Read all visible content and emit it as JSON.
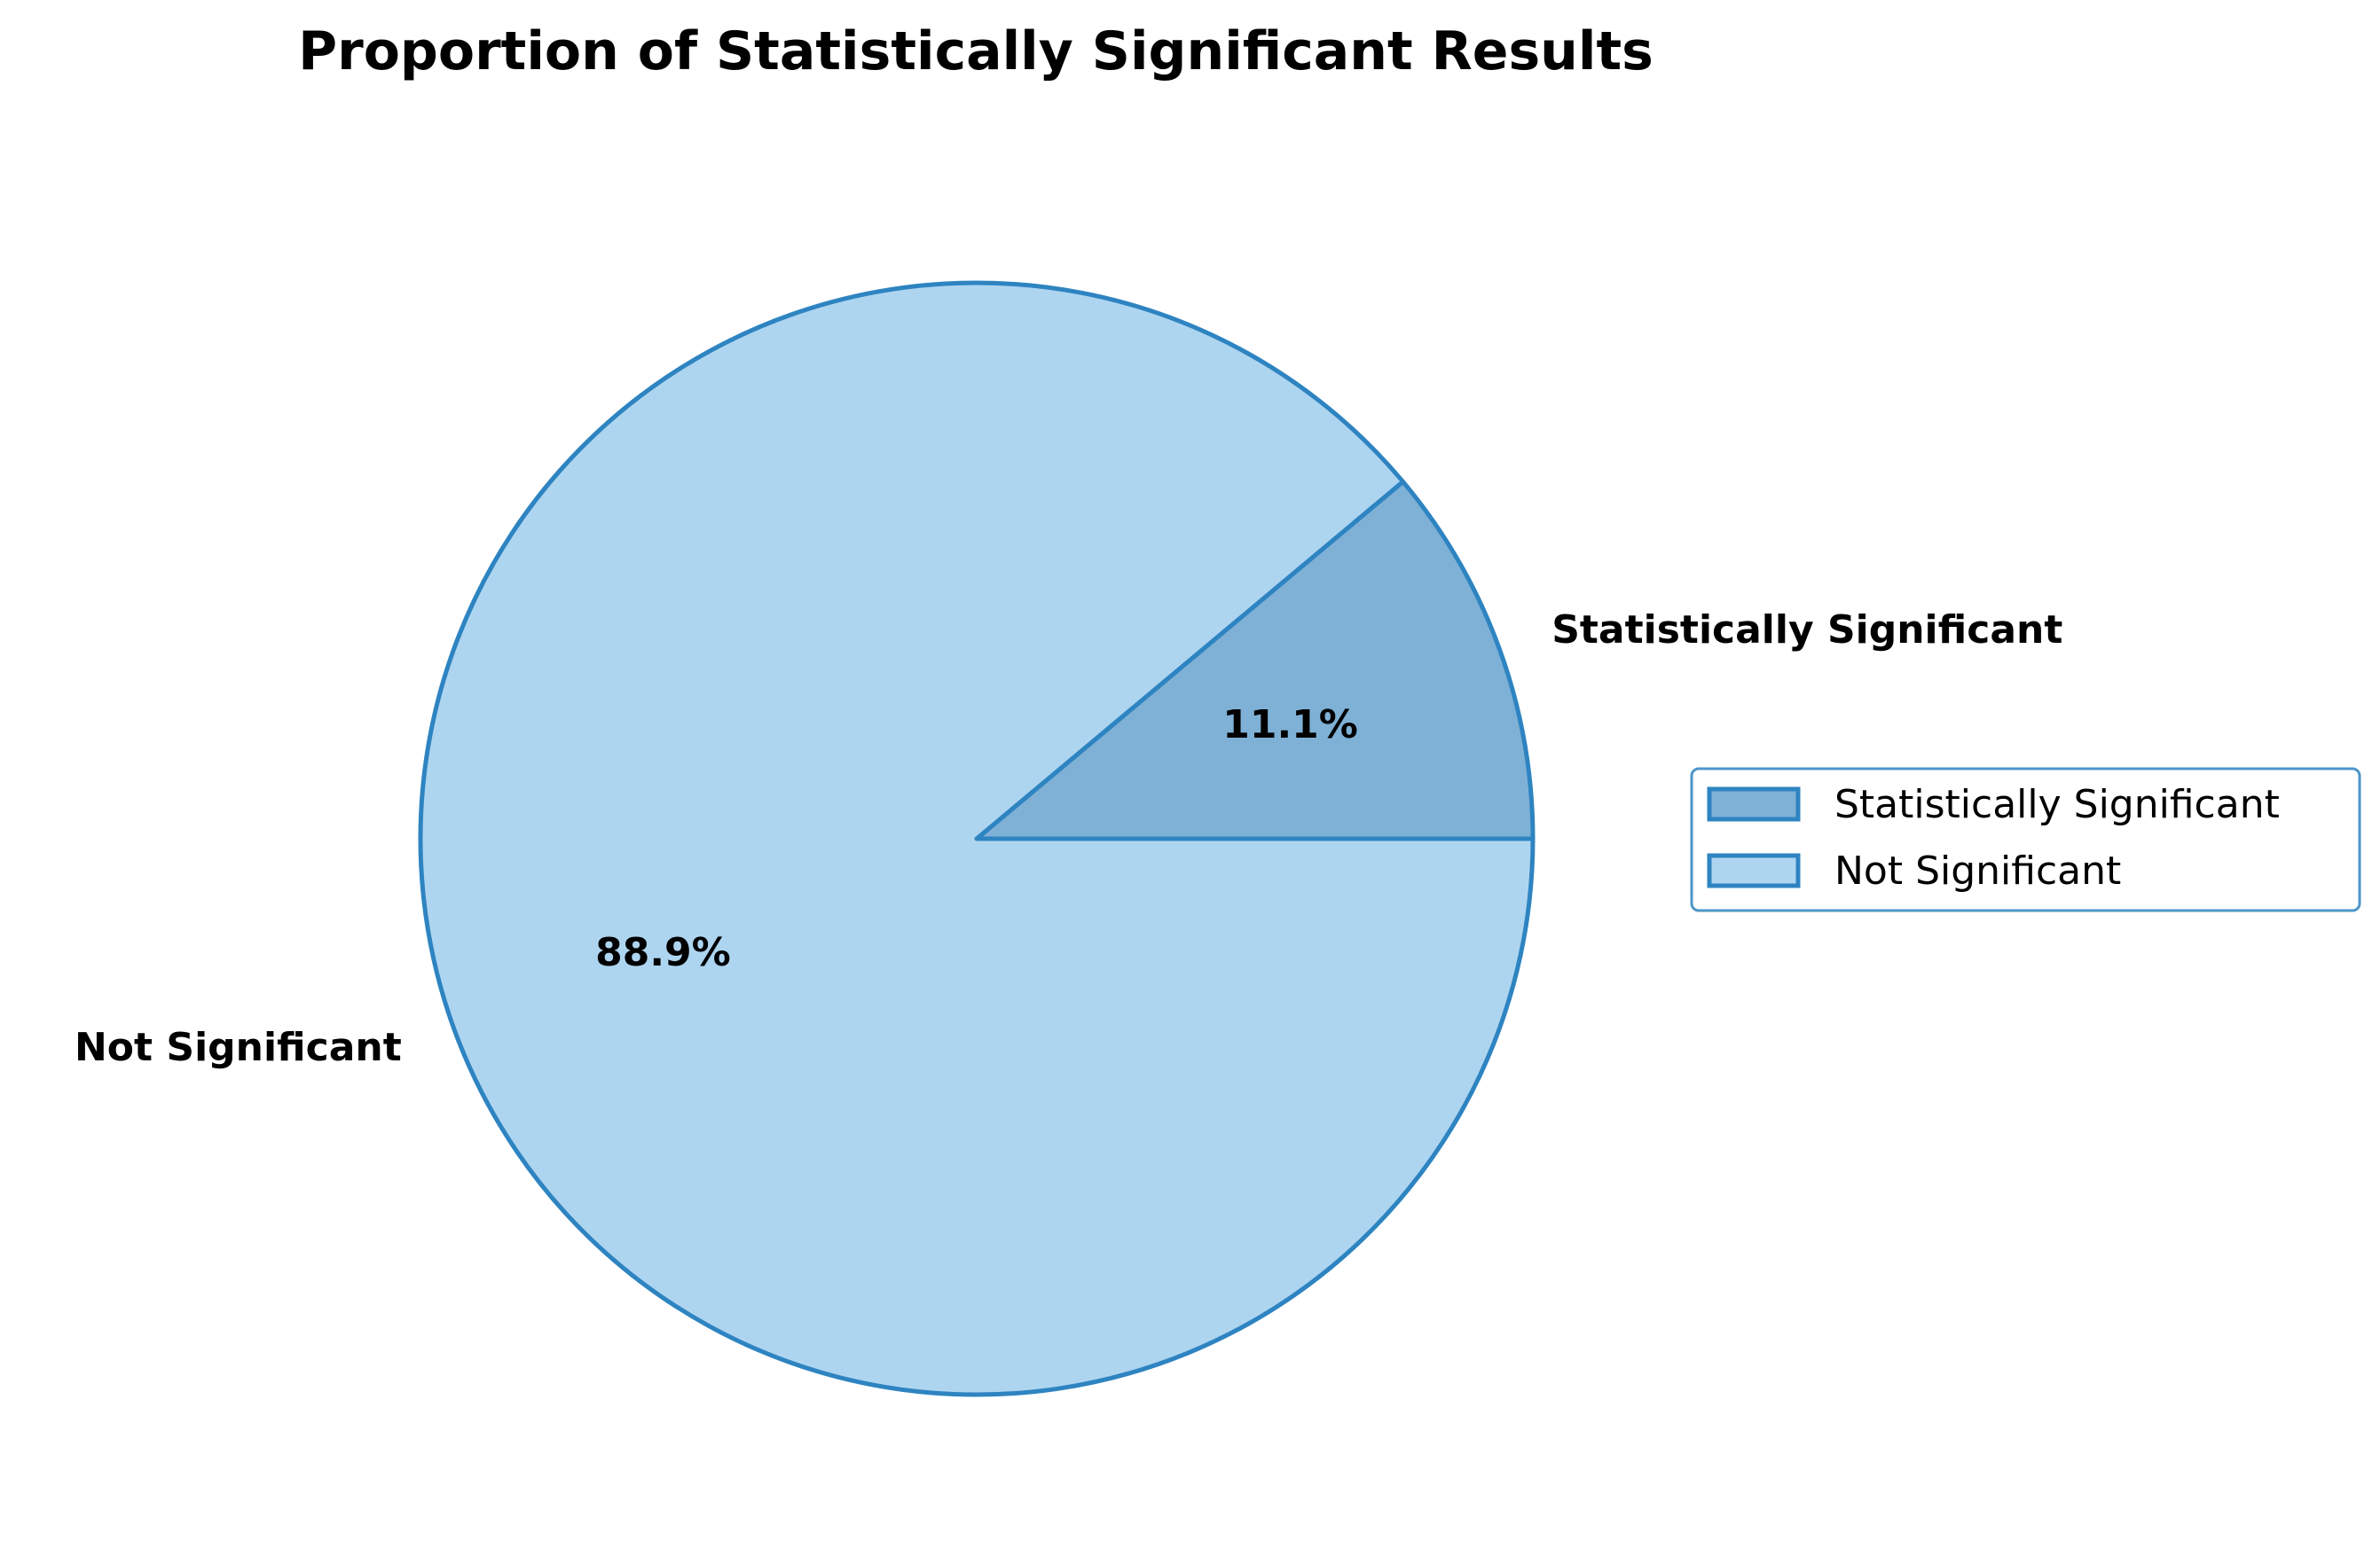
{
  "chart_data": {
    "type": "pie",
    "title": "Proportion of Statistically Significant Results",
    "categories": [
      "Statistically Significant",
      "Not Significant"
    ],
    "values": [
      11.1,
      88.9
    ],
    "value_labels": [
      "11.1%",
      "88.9%"
    ],
    "colors": [
      "#7fb1d6",
      "#aed5f0"
    ],
    "edge_color": "#2e84c1",
    "legend": {
      "placement": "right",
      "entries": [
        "Statistically Significant",
        "Not Significant"
      ]
    }
  }
}
